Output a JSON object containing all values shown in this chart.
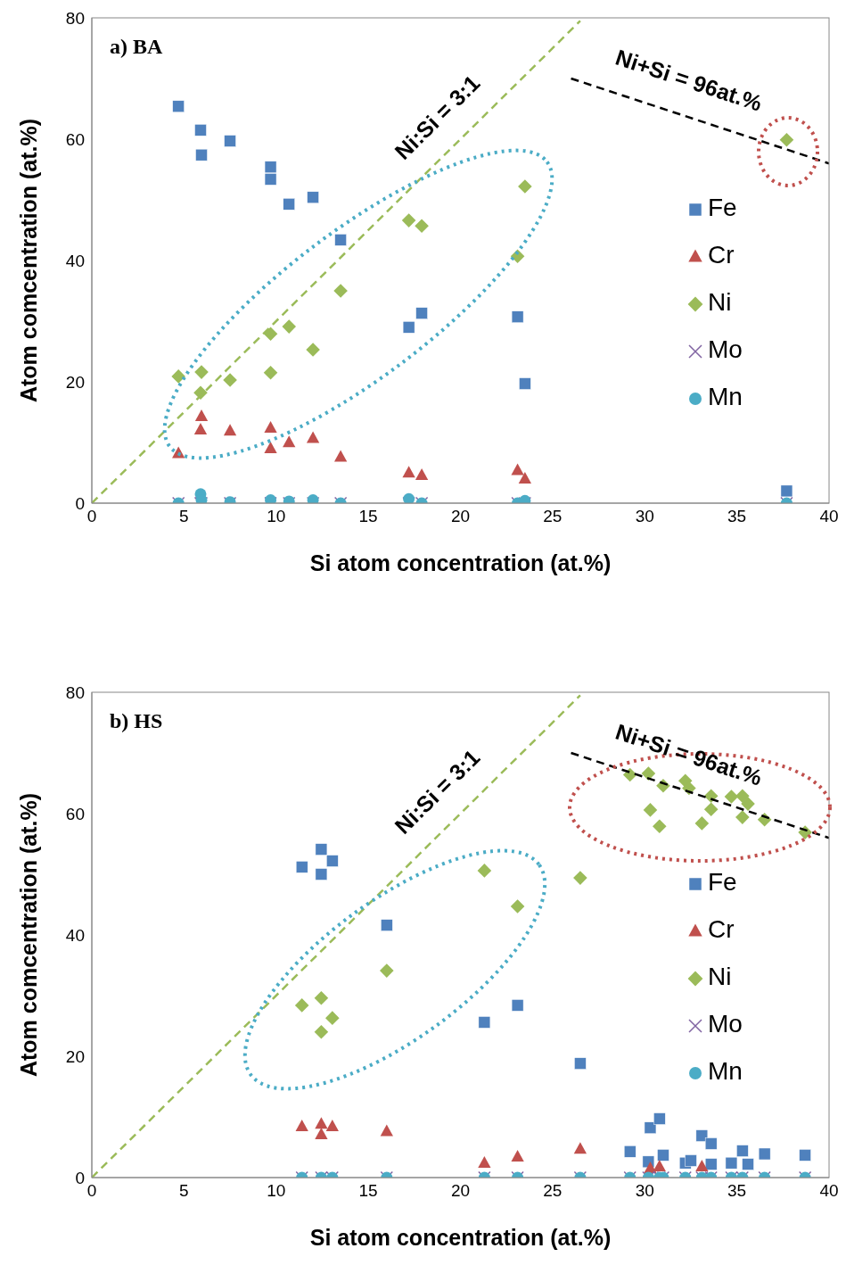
{
  "chart_data": [
    {
      "type": "scatter",
      "title": "a) BA",
      "xlabel": "Si atom concentration (at.%)",
      "ylabel": "Atom comcentration (at.%)",
      "xlim": [
        0,
        40
      ],
      "xticks": [
        0,
        5,
        10,
        15,
        20,
        25,
        30,
        35,
        40
      ],
      "ylim": [
        0,
        80
      ],
      "yticks": [
        0,
        20,
        40,
        60,
        80
      ],
      "legend": "right",
      "annotations": [
        "Ni:Si = 3:1",
        "Ni+Si = 96at.%"
      ],
      "series": [
        {
          "name": "Fe",
          "color": "#4f81bd",
          "marker": "square",
          "x": [
            4.7,
            5.9,
            5.95,
            7.5,
            9.7,
            9.7,
            10.7,
            12.0,
            13.5,
            17.2,
            17.9,
            23.1,
            23.5,
            37.7
          ],
          "values": [
            65.4,
            61.5,
            57.4,
            59.7,
            55.4,
            53.4,
            49.3,
            50.4,
            43.4,
            29.0,
            31.3,
            30.7,
            19.7,
            2.0
          ]
        },
        {
          "name": "Cr",
          "color": "#c0504d",
          "marker": "triangle",
          "x": [
            4.7,
            5.95,
            5.9,
            7.5,
            9.7,
            9.7,
            10.7,
            12.0,
            13.5,
            17.2,
            17.9,
            23.1,
            23.5
          ],
          "values": [
            8.2,
            14.3,
            12.1,
            11.9,
            12.4,
            9.0,
            10.0,
            10.7,
            7.6,
            5.0,
            4.6,
            5.4,
            4.0
          ]
        },
        {
          "name": "Ni",
          "color": "#9bbb59",
          "marker": "diamond",
          "x": [
            4.7,
            5.95,
            5.9,
            7.5,
            9.7,
            9.7,
            10.7,
            12.0,
            13.5,
            17.2,
            17.9,
            23.1,
            23.5,
            37.7
          ],
          "values": [
            20.9,
            21.6,
            18.2,
            20.3,
            27.9,
            21.5,
            29.1,
            25.3,
            35.0,
            46.6,
            45.7,
            40.7,
            52.2,
            59.9
          ]
        },
        {
          "name": "Mo",
          "color": "#8064a2",
          "marker": "cross",
          "x": [
            4.7,
            5.9,
            5.95,
            7.5,
            9.7,
            10.7,
            12.0,
            13.5,
            17.2,
            17.9,
            23.1,
            23.5,
            37.7
          ],
          "values": [
            0,
            0,
            0,
            0,
            0,
            0,
            0,
            0,
            0,
            0,
            0,
            0,
            0
          ]
        },
        {
          "name": "Mn",
          "color": "#4bacc6",
          "marker": "circle",
          "x": [
            4.7,
            5.9,
            5.95,
            7.5,
            9.7,
            10.7,
            12.0,
            13.5,
            17.2,
            17.9,
            23.1,
            23.5,
            37.7
          ],
          "values": [
            0,
            1.5,
            0.5,
            0.2,
            0.5,
            0.3,
            0.5,
            0,
            0.7,
            0,
            0,
            0.4,
            0
          ]
        },
        {
          "type": "line",
          "color": "#9bbb59",
          "line_style": "dashed",
          "x": [
            0,
            26.5
          ],
          "values": [
            0,
            79.5
          ]
        },
        {
          "type": "line",
          "color": "#000000",
          "line_style": "dashed",
          "x": [
            26,
            40
          ],
          "values": [
            70,
            56
          ]
        }
      ]
    },
    {
      "type": "scatter",
      "title": "b) HS",
      "xlabel": "Si atom concentration (at.%)",
      "ylabel": "Atom comcentration (at.%)",
      "xlim": [
        0,
        40
      ],
      "xticks": [
        0,
        5,
        10,
        15,
        20,
        25,
        30,
        35,
        40
      ],
      "ylim": [
        0,
        80
      ],
      "yticks": [
        0,
        20,
        40,
        60,
        80
      ],
      "legend": "right",
      "annotations": [
        "Ni:Si = 3:1",
        "Ni+Si = 96at.%"
      ],
      "series": [
        {
          "name": "Fe",
          "color": "#4f81bd",
          "marker": "square",
          "x": [
            11.4,
            12.45,
            12.45,
            13.05,
            16.0,
            21.3,
            23.1,
            26.5,
            29.2,
            30.2,
            30.3,
            30.8,
            31.0,
            32.2,
            32.5,
            33.1,
            33.6,
            33.6,
            34.7,
            35.3,
            35.6,
            36.5,
            38.7
          ],
          "values": [
            51.2,
            54.1,
            50.0,
            52.2,
            41.6,
            25.6,
            28.4,
            18.8,
            4.3,
            2.6,
            8.2,
            9.7,
            3.7,
            2.4,
            2.8,
            6.9,
            5.6,
            2.2,
            2.4,
            4.4,
            2.2,
            3.9,
            3.7
          ]
        },
        {
          "name": "Cr",
          "color": "#c0504d",
          "marker": "triangle",
          "x": [
            11.4,
            12.45,
            12.45,
            13.05,
            16.0,
            21.3,
            23.1,
            26.5,
            30.3,
            30.8,
            33.1
          ],
          "values": [
            8.4,
            8.8,
            7.1,
            8.4,
            7.6,
            2.4,
            3.4,
            4.7,
            1.5,
            1.8,
            1.8
          ]
        },
        {
          "name": "Ni",
          "color": "#9bbb59",
          "marker": "diamond",
          "x": [
            11.4,
            12.45,
            12.45,
            13.05,
            16.0,
            21.3,
            23.1,
            26.5,
            29.2,
            30.2,
            30.3,
            30.8,
            31.0,
            32.2,
            32.4,
            33.1,
            33.6,
            33.6,
            34.7,
            35.3,
            35.3,
            35.6,
            36.5,
            38.7
          ],
          "values": [
            28.4,
            29.6,
            24.0,
            26.3,
            34.1,
            50.6,
            44.7,
            49.4,
            66.4,
            66.6,
            60.6,
            57.9,
            64.6,
            65.4,
            64.2,
            58.4,
            62.9,
            60.7,
            62.8,
            62.9,
            59.4,
            61.6,
            59.0,
            56.9
          ]
        },
        {
          "name": "Mo",
          "color": "#8064a2",
          "marker": "cross",
          "x": [
            11.4,
            12.45,
            13.05,
            16.0,
            21.3,
            23.1,
            26.5,
            29.2,
            30.2,
            30.8,
            31.0,
            32.2,
            33.1,
            33.6,
            34.7,
            35.3,
            36.5,
            38.7
          ],
          "values": [
            0,
            0,
            0,
            0,
            0,
            0,
            0,
            0,
            0,
            0,
            0,
            0,
            0,
            0,
            0,
            0,
            0,
            0
          ]
        },
        {
          "name": "Mn",
          "color": "#4bacc6",
          "marker": "circle",
          "x": [
            11.4,
            12.45,
            13.05,
            16.0,
            21.3,
            23.1,
            26.5,
            29.2,
            30.2,
            30.8,
            31.0,
            32.2,
            33.1,
            33.6,
            34.7,
            35.3,
            36.5,
            38.7
          ],
          "values": [
            0,
            0,
            0,
            0,
            0,
            0,
            0,
            0,
            0,
            0,
            0,
            0,
            0,
            0,
            0,
            0,
            0,
            0
          ]
        },
        {
          "type": "line",
          "color": "#9bbb59",
          "line_style": "dashed",
          "x": [
            0,
            26.5
          ],
          "values": [
            0,
            79.5
          ]
        },
        {
          "type": "line",
          "color": "#000000",
          "line_style": "dashed",
          "x": [
            26,
            40
          ],
          "values": [
            70,
            56
          ]
        }
      ]
    }
  ]
}
